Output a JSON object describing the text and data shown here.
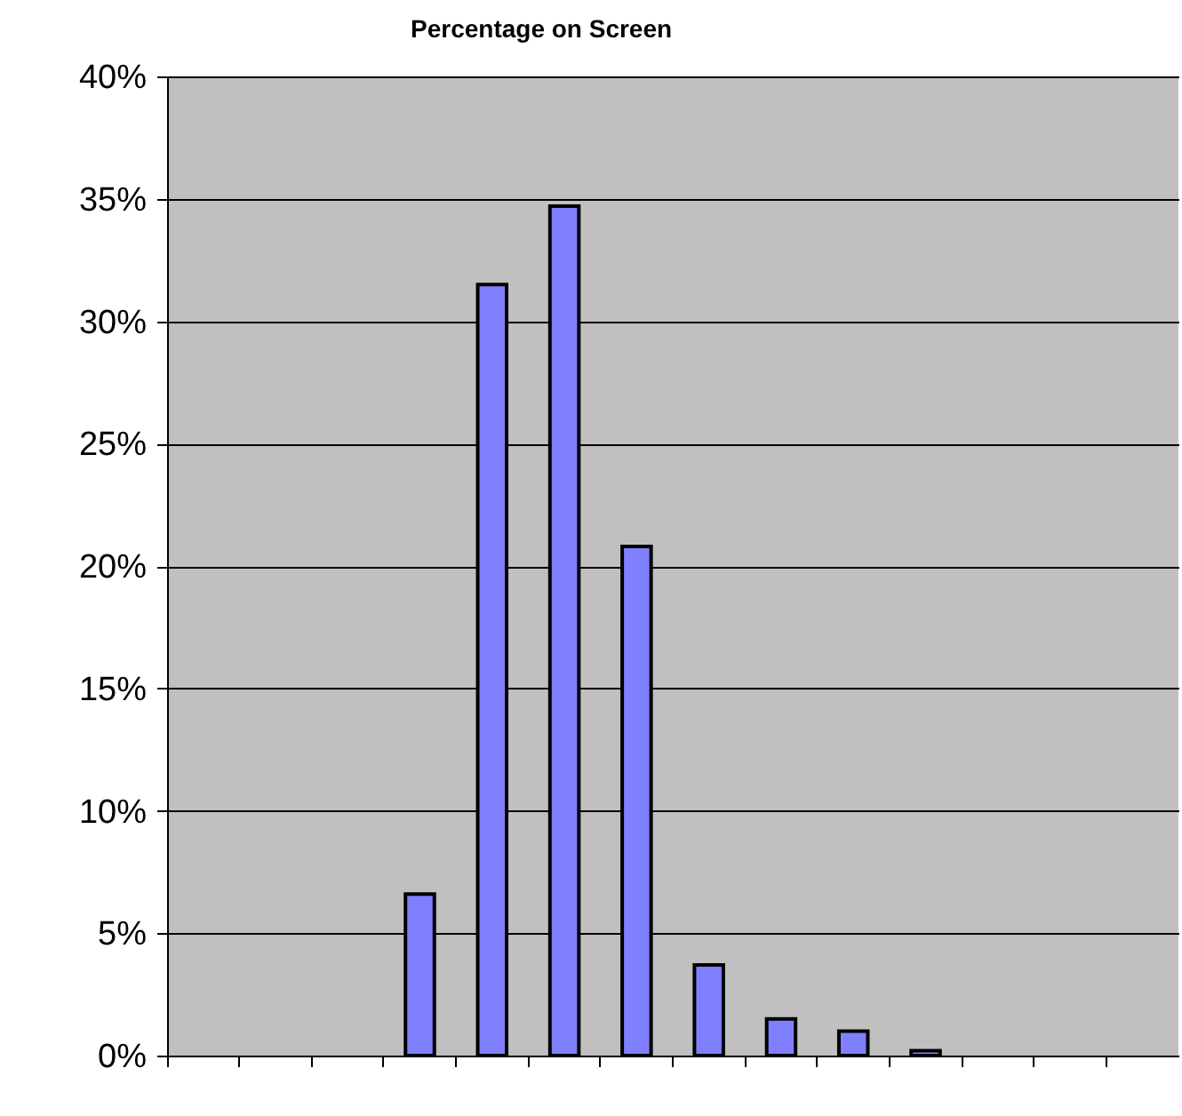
{
  "chart_data": {
    "type": "bar",
    "title": "Percentage on Screen",
    "categories": [
      null,
      null,
      null,
      null,
      null,
      null,
      null,
      null,
      null,
      null,
      null,
      null,
      null,
      null
    ],
    "values": [
      null,
      null,
      null,
      6.6,
      31.5,
      34.7,
      20.8,
      3.7,
      1.5,
      1.0,
      0.2,
      null,
      null,
      null
    ],
    "color": "#8080ff",
    "ylim": [
      0,
      40
    ],
    "yticks": [
      {
        "value": 0,
        "label": "0%"
      },
      {
        "value": 5,
        "label": "5%"
      },
      {
        "value": 10,
        "label": "10%"
      },
      {
        "value": 15,
        "label": "15%"
      },
      {
        "value": 20,
        "label": "20%"
      },
      {
        "value": 25,
        "label": "25%"
      },
      {
        "value": 30,
        "label": "30%"
      },
      {
        "value": 35,
        "label": "35%"
      },
      {
        "value": 40,
        "label": "40%"
      }
    ],
    "grid": "y",
    "tick_labels": "y"
  }
}
